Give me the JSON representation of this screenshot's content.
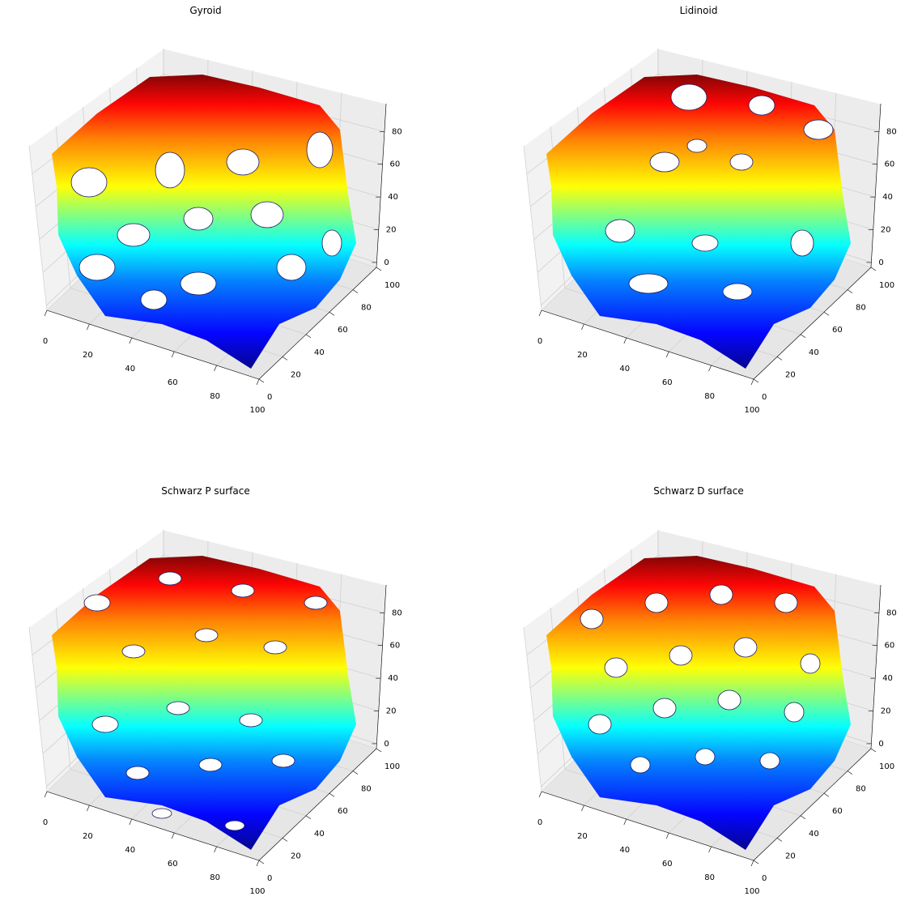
{
  "chart_data": [
    {
      "type": "surface3d",
      "title": "Gyroid",
      "surface": "gyroid",
      "colormap": "jet",
      "x_ticks": [
        0,
        20,
        40,
        60,
        80,
        100
      ],
      "y_ticks": [
        0,
        20,
        40,
        60,
        80,
        100
      ],
      "z_ticks": [
        0,
        20,
        40,
        60,
        80
      ],
      "xlim": [
        0,
        100
      ],
      "ylim": [
        0,
        100
      ],
      "zlim": [
        0,
        100
      ],
      "grid": true
    },
    {
      "type": "surface3d",
      "title": "Lidinoid",
      "surface": "lidinoid",
      "colormap": "jet",
      "x_ticks": [
        0,
        20,
        40,
        60,
        80,
        100
      ],
      "y_ticks": [
        0,
        20,
        40,
        60,
        80,
        100
      ],
      "z_ticks": [
        0,
        20,
        40,
        60,
        80
      ],
      "xlim": [
        0,
        100
      ],
      "ylim": [
        0,
        100
      ],
      "zlim": [
        0,
        100
      ],
      "grid": true
    },
    {
      "type": "surface3d",
      "title": "Schwarz P surface",
      "surface": "schwarz-p",
      "colormap": "jet",
      "x_ticks": [
        0,
        20,
        40,
        60,
        80,
        100
      ],
      "y_ticks": [
        0,
        20,
        40,
        60,
        80,
        100
      ],
      "z_ticks": [
        0,
        20,
        40,
        60,
        80
      ],
      "xlim": [
        0,
        100
      ],
      "ylim": [
        0,
        100
      ],
      "zlim": [
        0,
        100
      ],
      "grid": true
    },
    {
      "type": "surface3d",
      "title": "Schwarz D surface",
      "surface": "schwarz-d",
      "colormap": "jet",
      "x_ticks": [
        0,
        20,
        40,
        60,
        80,
        100
      ],
      "y_ticks": [
        0,
        20,
        40,
        60,
        80,
        100
      ],
      "z_ticks": [
        0,
        20,
        40,
        60,
        80
      ],
      "xlim": [
        0,
        100
      ],
      "ylim": [
        0,
        100
      ],
      "zlim": [
        0,
        100
      ],
      "grid": true
    }
  ]
}
